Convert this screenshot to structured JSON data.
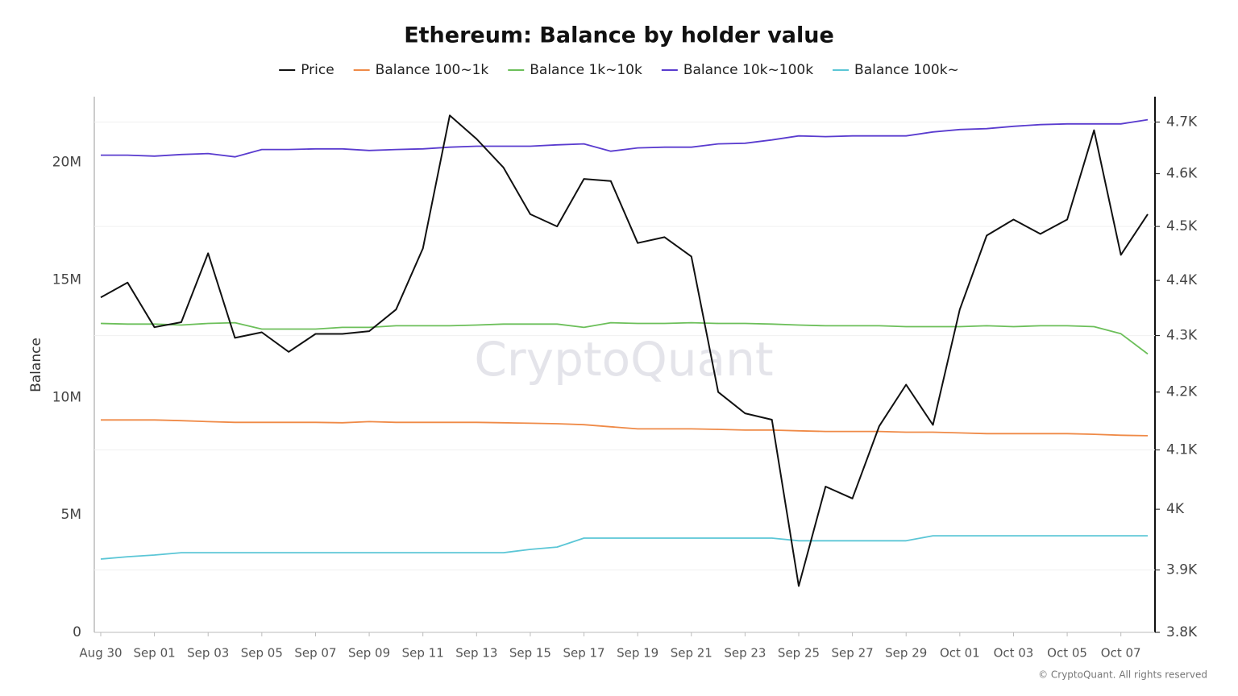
{
  "chart_data": {
    "type": "line",
    "title": "Ethereum: Balance by holder value",
    "y_label": "Balance",
    "watermark": "CryptoQuant",
    "footer": "© CryptoQuant. All rights reserved",
    "legend": "top",
    "grid": true,
    "categories": [
      "Aug 30",
      null,
      "Sep 01",
      null,
      "Sep 03",
      null,
      "Sep 05",
      null,
      "Sep 07",
      null,
      "Sep 09",
      null,
      "Sep 11",
      null,
      "Sep 13",
      null,
      "Sep 15",
      null,
      "Sep 17",
      null,
      "Sep 19",
      null,
      "Sep 21",
      null,
      "Sep 23",
      null,
      "Sep 25",
      null,
      "Sep 27",
      null,
      "Sep 29",
      null,
      "Oct 01",
      null,
      "Oct 03",
      null,
      "Oct 05",
      null,
      "Oct 07",
      null
    ],
    "ylim": [
      0,
      22800000
    ],
    "yticks": [
      0,
      {
        "value": 5000000,
        "label": "5M"
      },
      {
        "value": 10000000,
        "label": "10M"
      },
      {
        "value": 15000000,
        "label": "15M"
      },
      {
        "value": 20000000,
        "label": "20M"
      }
    ],
    "y2lim": [
      3800,
      4750
    ],
    "y2log": true,
    "y2ticks": [
      {
        "value": 3800,
        "label": "3.8K"
      },
      {
        "value": 3900,
        "label": "3.9K"
      },
      {
        "value": 4000,
        "label": "4K"
      },
      {
        "value": 4100,
        "label": "4.1K"
      },
      {
        "value": 4200,
        "label": "4.2K"
      },
      {
        "value": 4300,
        "label": "4.3K"
      },
      {
        "value": 4400,
        "label": "4.4K"
      },
      {
        "value": 4500,
        "label": "4.5K"
      },
      {
        "value": 4600,
        "label": "4.6K"
      },
      {
        "value": 4700,
        "label": "4.7K"
      }
    ],
    "series": [
      {
        "name": "Price",
        "color": "#111111",
        "axis": "y2",
        "values": [
          4369,
          4396,
          4315,
          4324,
          4450,
          4296,
          4306,
          4271,
          4303,
          4303,
          4308,
          4347,
          4459,
          4713,
          4667,
          4612,
          4523,
          4500,
          4590,
          4586,
          4469,
          4480,
          4444,
          4200,
          4163,
          4152,
          3874,
          4038,
          4018,
          4141,
          4213,
          4143,
          4347,
          4483,
          4513,
          4486,
          4513,
          4684,
          4447,
          4523
        ]
      },
      {
        "name": "Balance 100~1k",
        "color": "#ef8a47",
        "values": [
          9040000,
          9040000,
          9040000,
          9010000,
          8970000,
          8940000,
          8940000,
          8940000,
          8940000,
          8920000,
          8970000,
          8940000,
          8940000,
          8940000,
          8940000,
          8920000,
          8900000,
          8880000,
          8840000,
          8750000,
          8660000,
          8660000,
          8660000,
          8640000,
          8610000,
          8610000,
          8580000,
          8550000,
          8550000,
          8550000,
          8520000,
          8520000,
          8490000,
          8460000,
          8460000,
          8460000,
          8460000,
          8430000,
          8390000,
          8370000
        ]
      },
      {
        "name": "Balance 1k~10k",
        "color": "#6cbf5a",
        "values": [
          13150000,
          13120000,
          13120000,
          13080000,
          13150000,
          13180000,
          12910000,
          12910000,
          12910000,
          12980000,
          12980000,
          13050000,
          13050000,
          13050000,
          13080000,
          13120000,
          13120000,
          13120000,
          12980000,
          13180000,
          13150000,
          13150000,
          13180000,
          13150000,
          13150000,
          13120000,
          13080000,
          13050000,
          13050000,
          13050000,
          13010000,
          13010000,
          13010000,
          13050000,
          13010000,
          13050000,
          13050000,
          13010000,
          12710000,
          11850000
        ]
      },
      {
        "name": "Balance 10k~100k",
        "color": "#5a3ccf",
        "values": [
          20310000,
          20310000,
          20270000,
          20340000,
          20380000,
          20240000,
          20550000,
          20550000,
          20580000,
          20580000,
          20510000,
          20550000,
          20580000,
          20650000,
          20690000,
          20690000,
          20690000,
          20750000,
          20790000,
          20480000,
          20620000,
          20650000,
          20650000,
          20790000,
          20820000,
          20960000,
          21130000,
          21100000,
          21130000,
          21130000,
          21130000,
          21300000,
          21400000,
          21440000,
          21540000,
          21610000,
          21640000,
          21640000,
          21640000,
          21820000
        ]
      },
      {
        "name": "Balance 100k~",
        "color": "#5bc6d6",
        "values": [
          3120000,
          3220000,
          3290000,
          3390000,
          3390000,
          3390000,
          3390000,
          3390000,
          3390000,
          3390000,
          3390000,
          3390000,
          3390000,
          3390000,
          3390000,
          3390000,
          3530000,
          3630000,
          4010000,
          4010000,
          4010000,
          4010000,
          4010000,
          4010000,
          4010000,
          4010000,
          3900000,
          3900000,
          3900000,
          3900000,
          3900000,
          4110000,
          4110000,
          4110000,
          4110000,
          4110000,
          4110000,
          4110000,
          4110000,
          4110000
        ]
      }
    ]
  }
}
